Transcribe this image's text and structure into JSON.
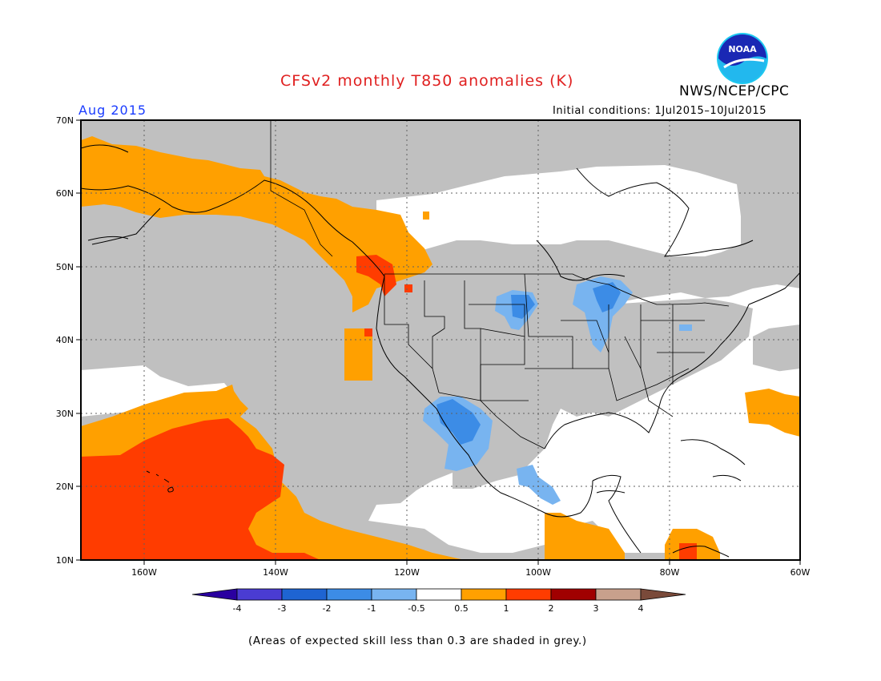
{
  "header": {
    "title": "CFSv2 monthly T850 anomalies (K)",
    "agency": "NWS/NCEP/CPC",
    "month": "Aug 2015",
    "initial_conditions": "Initial conditions: 1Jul2015–10Jul2015",
    "logo_text": "NOAA"
  },
  "map": {
    "lat_labels": [
      "70N",
      "60N",
      "50N",
      "40N",
      "30N",
      "20N",
      "10N"
    ],
    "lon_labels": [
      "160W",
      "140W",
      "120W",
      "100W",
      "80W",
      "60W"
    ],
    "colors": {
      "grey": "#c0c0c0",
      "orange": "#ffa000",
      "red": "#ff3c00",
      "light_blue": "#78b4f0",
      "blue": "#3c8ce6",
      "white": "#ffffff"
    }
  },
  "colorbar": {
    "tick_labels": [
      "-4",
      "-3",
      "-2",
      "-1",
      "-0.5",
      "0.5",
      "1",
      "2",
      "3",
      "4"
    ],
    "colors": [
      "#2a00a0",
      "#4a3cd2",
      "#1e64d2",
      "#3c8ce6",
      "#78b4f0",
      "#ffffff",
      "#ffa000",
      "#ff3c00",
      "#a00000",
      "#c8a08c",
      "#7a4a3a"
    ]
  },
  "footnote": "(Areas of expected skill less than 0.3 are shaded in grey.)"
}
